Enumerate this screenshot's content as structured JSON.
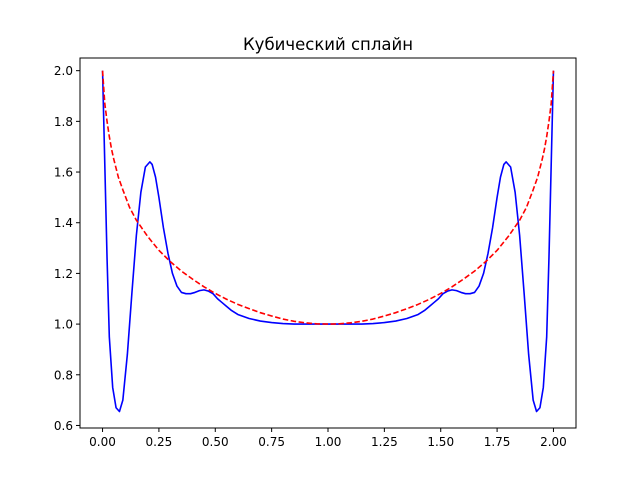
{
  "chart_data": {
    "type": "line",
    "title": "Кубический сплайн",
    "xlabel": "",
    "ylabel": "",
    "xlim": [
      -0.1,
      2.1
    ],
    "ylim": [
      0.59,
      2.05
    ],
    "xticks": [
      0.0,
      0.25,
      0.5,
      0.75,
      1.0,
      1.25,
      1.5,
      1.75,
      2.0
    ],
    "xtick_labels": [
      "0.00",
      "0.25",
      "0.50",
      "0.75",
      "1.00",
      "1.25",
      "1.50",
      "1.75",
      "2.00"
    ],
    "yticks": [
      0.6,
      0.8,
      1.0,
      1.2,
      1.4,
      1.6,
      1.8,
      2.0
    ],
    "ytick_labels": [
      "0.6",
      "0.8",
      "1.0",
      "1.2",
      "1.4",
      "1.6",
      "1.8",
      "2.0"
    ],
    "grid": false,
    "series": [
      {
        "color": "#0000ff",
        "linestyle": "solid",
        "x": [
          0.0,
          0.01,
          0.02,
          0.03,
          0.045,
          0.06,
          0.075,
          0.09,
          0.11,
          0.13,
          0.15,
          0.17,
          0.19,
          0.21,
          0.22,
          0.235,
          0.25,
          0.27,
          0.29,
          0.31,
          0.33,
          0.35,
          0.37,
          0.39,
          0.41,
          0.43,
          0.45,
          0.47,
          0.49,
          0.51,
          0.53,
          0.55,
          0.57,
          0.6,
          0.65,
          0.7,
          0.75,
          0.8,
          0.85,
          0.9,
          0.95,
          1.0,
          1.05,
          1.1,
          1.15,
          1.2,
          1.25,
          1.3,
          1.35,
          1.4,
          1.43,
          1.45,
          1.47,
          1.49,
          1.51,
          1.53,
          1.55,
          1.57,
          1.59,
          1.61,
          1.63,
          1.65,
          1.67,
          1.69,
          1.71,
          1.73,
          1.75,
          1.765,
          1.78,
          1.79,
          1.81,
          1.83,
          1.85,
          1.87,
          1.89,
          1.91,
          1.925,
          1.94,
          1.955,
          1.97,
          1.98,
          1.99,
          2.0
        ],
        "y": [
          2.0,
          1.63,
          1.26,
          0.95,
          0.75,
          0.67,
          0.655,
          0.7,
          0.88,
          1.12,
          1.35,
          1.52,
          1.62,
          1.64,
          1.63,
          1.58,
          1.5,
          1.38,
          1.28,
          1.2,
          1.15,
          1.125,
          1.12,
          1.12,
          1.125,
          1.132,
          1.135,
          1.13,
          1.12,
          1.1,
          1.085,
          1.07,
          1.055,
          1.038,
          1.022,
          1.012,
          1.006,
          1.002,
          1.0,
          1.0,
          1.0,
          1.0,
          1.0,
          1.0,
          1.0,
          1.002,
          1.006,
          1.012,
          1.022,
          1.038,
          1.055,
          1.07,
          1.085,
          1.1,
          1.12,
          1.13,
          1.135,
          1.132,
          1.125,
          1.12,
          1.12,
          1.125,
          1.15,
          1.2,
          1.28,
          1.38,
          1.5,
          1.58,
          1.63,
          1.64,
          1.62,
          1.52,
          1.35,
          1.12,
          0.88,
          0.7,
          0.655,
          0.67,
          0.75,
          0.95,
          1.26,
          1.63,
          2.0
        ]
      },
      {
        "color": "#ff0000",
        "linestyle": "dashed",
        "x": [
          0.0,
          0.01,
          0.02,
          0.03,
          0.04,
          0.05,
          0.07,
          0.09,
          0.12,
          0.15,
          0.2,
          0.25,
          0.3,
          0.35,
          0.4,
          0.45,
          0.5,
          0.55,
          0.6,
          0.65,
          0.7,
          0.75,
          0.8,
          0.85,
          0.9,
          0.95,
          1.0,
          1.05,
          1.1,
          1.15,
          1.2,
          1.25,
          1.3,
          1.35,
          1.4,
          1.45,
          1.5,
          1.55,
          1.6,
          1.65,
          1.7,
          1.75,
          1.8,
          1.85,
          1.88,
          1.91,
          1.93,
          1.95,
          1.96,
          1.97,
          1.98,
          1.99,
          2.0
        ],
        "y": [
          2.0,
          1.87,
          1.8,
          1.74,
          1.69,
          1.65,
          1.58,
          1.53,
          1.46,
          1.41,
          1.346,
          1.291,
          1.247,
          1.209,
          1.177,
          1.147,
          1.121,
          1.098,
          1.078,
          1.061,
          1.045,
          1.032,
          1.02,
          1.011,
          1.005,
          1.001,
          1.0,
          1.001,
          1.005,
          1.011,
          1.02,
          1.032,
          1.045,
          1.061,
          1.078,
          1.098,
          1.121,
          1.147,
          1.177,
          1.209,
          1.247,
          1.291,
          1.346,
          1.41,
          1.46,
          1.53,
          1.58,
          1.65,
          1.69,
          1.74,
          1.8,
          1.87,
          2.0
        ]
      }
    ]
  }
}
